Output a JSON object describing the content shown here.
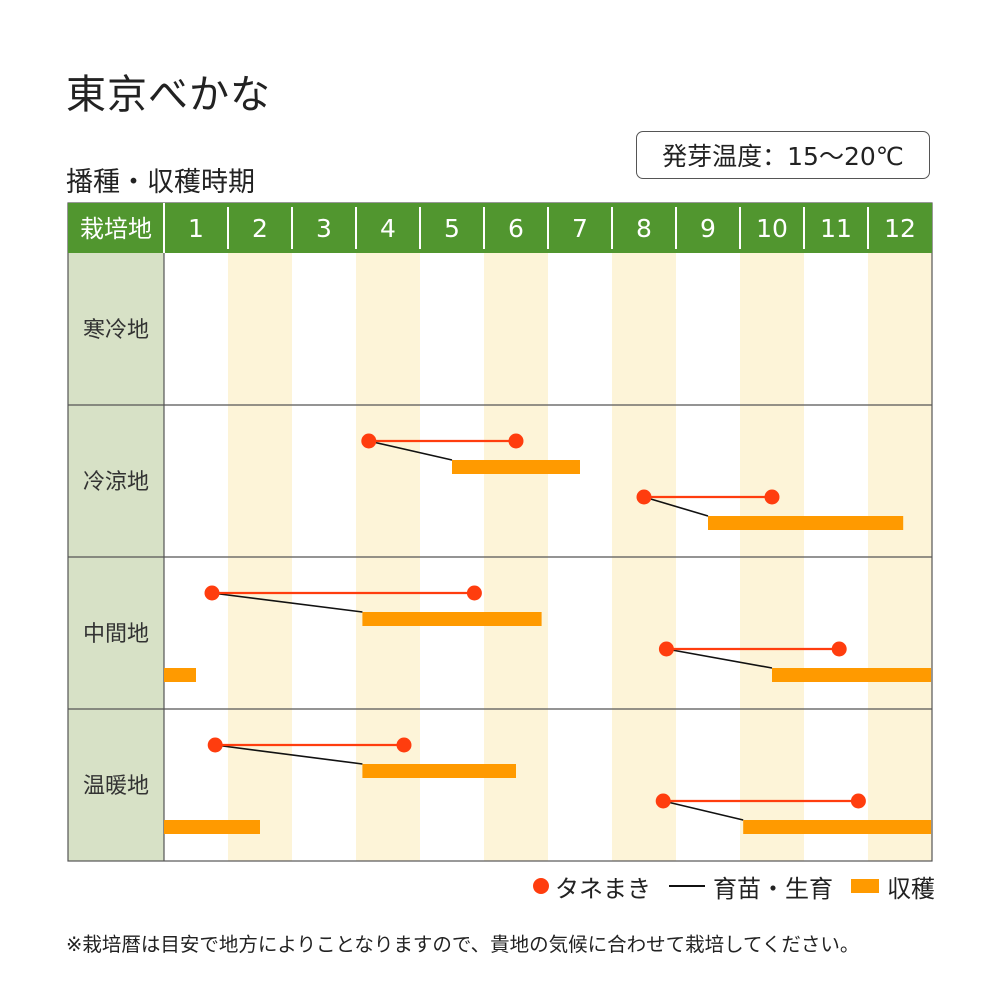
{
  "title": "東京べかな",
  "subtitle": "播種・収穫時期",
  "germination": "発芽温度：15～20℃",
  "legend": {
    "sowing": "タネまき",
    "seedling": "育苗・生育",
    "harvest": "収穫"
  },
  "note": "※栽培暦は目安で地方によりことなりますので、貴地の気候に合わせて栽培してください。",
  "colors": {
    "header_green": "#51962f",
    "row_label_bg": "#d7e1c6",
    "stripe": "#fdf4d8",
    "sowing_red": "#ff3d0e",
    "harvest_orange": "#ff9a00",
    "seedling_line": "#111111"
  },
  "chart_data": {
    "type": "gantt",
    "x_unit": "month",
    "header_label": "栽培地",
    "months": [
      "1",
      "2",
      "3",
      "4",
      "5",
      "6",
      "7",
      "8",
      "9",
      "10",
      "11",
      "12"
    ],
    "regions": [
      {
        "name": "寒冷地",
        "schedules": []
      },
      {
        "name": "冷涼地",
        "schedules": [
          {
            "sow": [
              4.2,
              6.5
            ],
            "harvest": [
              5.5,
              7.5
            ]
          },
          {
            "sow": [
              8.5,
              10.5
            ],
            "harvest": [
              9.5,
              12.55
            ]
          }
        ]
      },
      {
        "name": "中間地",
        "schedules": [
          {
            "sow": [
              1.75,
              5.85
            ],
            "harvest": [
              4.1,
              6.9
            ]
          },
          {
            "sow": [
              8.85,
              11.55
            ],
            "harvest": [
              10.5,
              13.0
            ]
          },
          {
            "sow": null,
            "harvest": [
              1.0,
              1.5
            ]
          }
        ]
      },
      {
        "name": "温暖地",
        "schedules": [
          {
            "sow": [
              1.8,
              4.75
            ],
            "harvest": [
              4.1,
              6.5
            ]
          },
          {
            "sow": [
              8.8,
              11.85
            ],
            "harvest": [
              10.05,
              13.0
            ]
          },
          {
            "sow": null,
            "harvest": [
              1.0,
              2.5
            ]
          }
        ]
      }
    ]
  }
}
